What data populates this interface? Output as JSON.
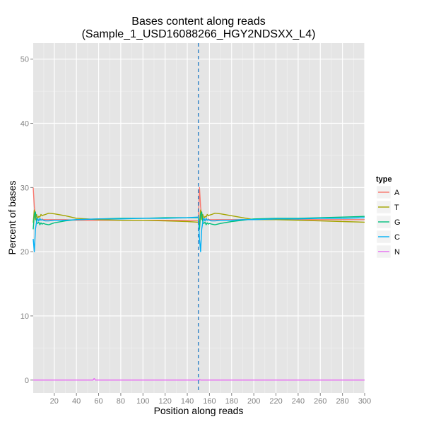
{
  "chart_data": {
    "type": "line",
    "title_line1": "Bases content along reads",
    "title_line2": "(Sample_1_USD16088266_HGY2NDSXX_L4)",
    "xlabel": "Position along reads",
    "ylabel": "Percent of bases",
    "xlim": [
      1,
      300
    ],
    "ylim": [
      -2,
      52.5
    ],
    "x_ticks": [
      20,
      40,
      60,
      80,
      100,
      120,
      140,
      160,
      180,
      200,
      220,
      240,
      260,
      280,
      300
    ],
    "y_ticks": [
      0,
      10,
      20,
      30,
      40,
      50
    ],
    "grid": true,
    "legend_title": "type",
    "legend_position": "right",
    "vline": {
      "x": 150,
      "style": "dashed",
      "color": "#3a87c8"
    },
    "x": [
      1,
      2,
      3,
      4,
      5,
      6,
      7,
      8,
      9,
      10,
      12,
      15,
      20,
      30,
      40,
      60,
      80,
      100,
      120,
      140,
      150,
      151,
      152,
      153,
      154,
      155,
      156,
      157,
      158,
      159,
      160,
      162,
      165,
      170,
      180,
      190,
      200,
      220,
      240,
      260,
      280,
      300
    ],
    "series": [
      {
        "name": "A",
        "color": "#f8766d",
        "values": [
          30.0,
          27.0,
          25.5,
          25.0,
          25.2,
          24.8,
          25.0,
          24.9,
          25.1,
          25.0,
          25.0,
          25.0,
          25.0,
          25.0,
          24.9,
          24.9,
          24.9,
          24.9,
          24.9,
          24.9,
          24.9,
          30.0,
          27.0,
          25.5,
          25.0,
          25.2,
          24.8,
          25.0,
          24.9,
          25.1,
          25.0,
          25.0,
          25.0,
          25.0,
          25.0,
          25.0,
          25.0,
          25.0,
          25.0,
          25.0,
          25.0,
          25.0
        ]
      },
      {
        "name": "T",
        "color": "#a3a500",
        "values": [
          24.5,
          26.5,
          25.0,
          25.8,
          25.2,
          25.5,
          25.4,
          25.8,
          25.6,
          25.7,
          25.8,
          26.0,
          25.9,
          25.6,
          25.2,
          25.0,
          24.9,
          24.9,
          24.8,
          24.7,
          24.6,
          24.5,
          26.5,
          25.0,
          25.8,
          25.2,
          25.5,
          25.4,
          25.8,
          25.6,
          25.7,
          25.8,
          26.0,
          25.9,
          25.6,
          25.3,
          25.0,
          25.0,
          24.9,
          24.8,
          24.7,
          24.6
        ]
      },
      {
        "name": "G",
        "color": "#00bf7d",
        "values": [
          23.5,
          25.8,
          26.2,
          24.6,
          24.4,
          24.6,
          24.2,
          24.5,
          24.3,
          24.4,
          24.3,
          24.2,
          24.5,
          24.8,
          25.0,
          25.1,
          25.2,
          25.2,
          25.3,
          25.3,
          25.3,
          23.5,
          25.8,
          26.2,
          24.6,
          24.4,
          24.6,
          24.2,
          24.5,
          24.3,
          24.4,
          24.3,
          24.2,
          24.4,
          24.7,
          24.9,
          25.1,
          25.2,
          25.2,
          25.3,
          25.4,
          25.5
        ]
      },
      {
        "name": "C",
        "color": "#00b0f6",
        "values": [
          22.0,
          20.0,
          23.5,
          24.6,
          25.2,
          24.8,
          25.2,
          24.9,
          25.0,
          24.9,
          24.8,
          24.8,
          24.9,
          24.9,
          25.0,
          25.1,
          25.1,
          25.2,
          25.2,
          25.3,
          25.4,
          22.0,
          20.0,
          23.5,
          24.6,
          25.2,
          24.8,
          25.2,
          24.9,
          25.0,
          24.9,
          24.8,
          24.8,
          24.9,
          24.9,
          25.0,
          25.0,
          25.1,
          25.1,
          25.2,
          25.2,
          25.3
        ]
      },
      {
        "name": "N",
        "color": "#e76bf3",
        "values": [
          0,
          0,
          0,
          0,
          0,
          0,
          0,
          0,
          0,
          0,
          0,
          0,
          0,
          0,
          0,
          0,
          0,
          0,
          0,
          0,
          0,
          0,
          0,
          0,
          0,
          0,
          0,
          0,
          0,
          0,
          0,
          0,
          0,
          0,
          0,
          0,
          0,
          0,
          0,
          0,
          0,
          0
        ],
        "spikes": [
          {
            "x": 56,
            "y": 0.25
          },
          {
            "x": 151,
            "y": 0.1
          }
        ]
      }
    ]
  }
}
